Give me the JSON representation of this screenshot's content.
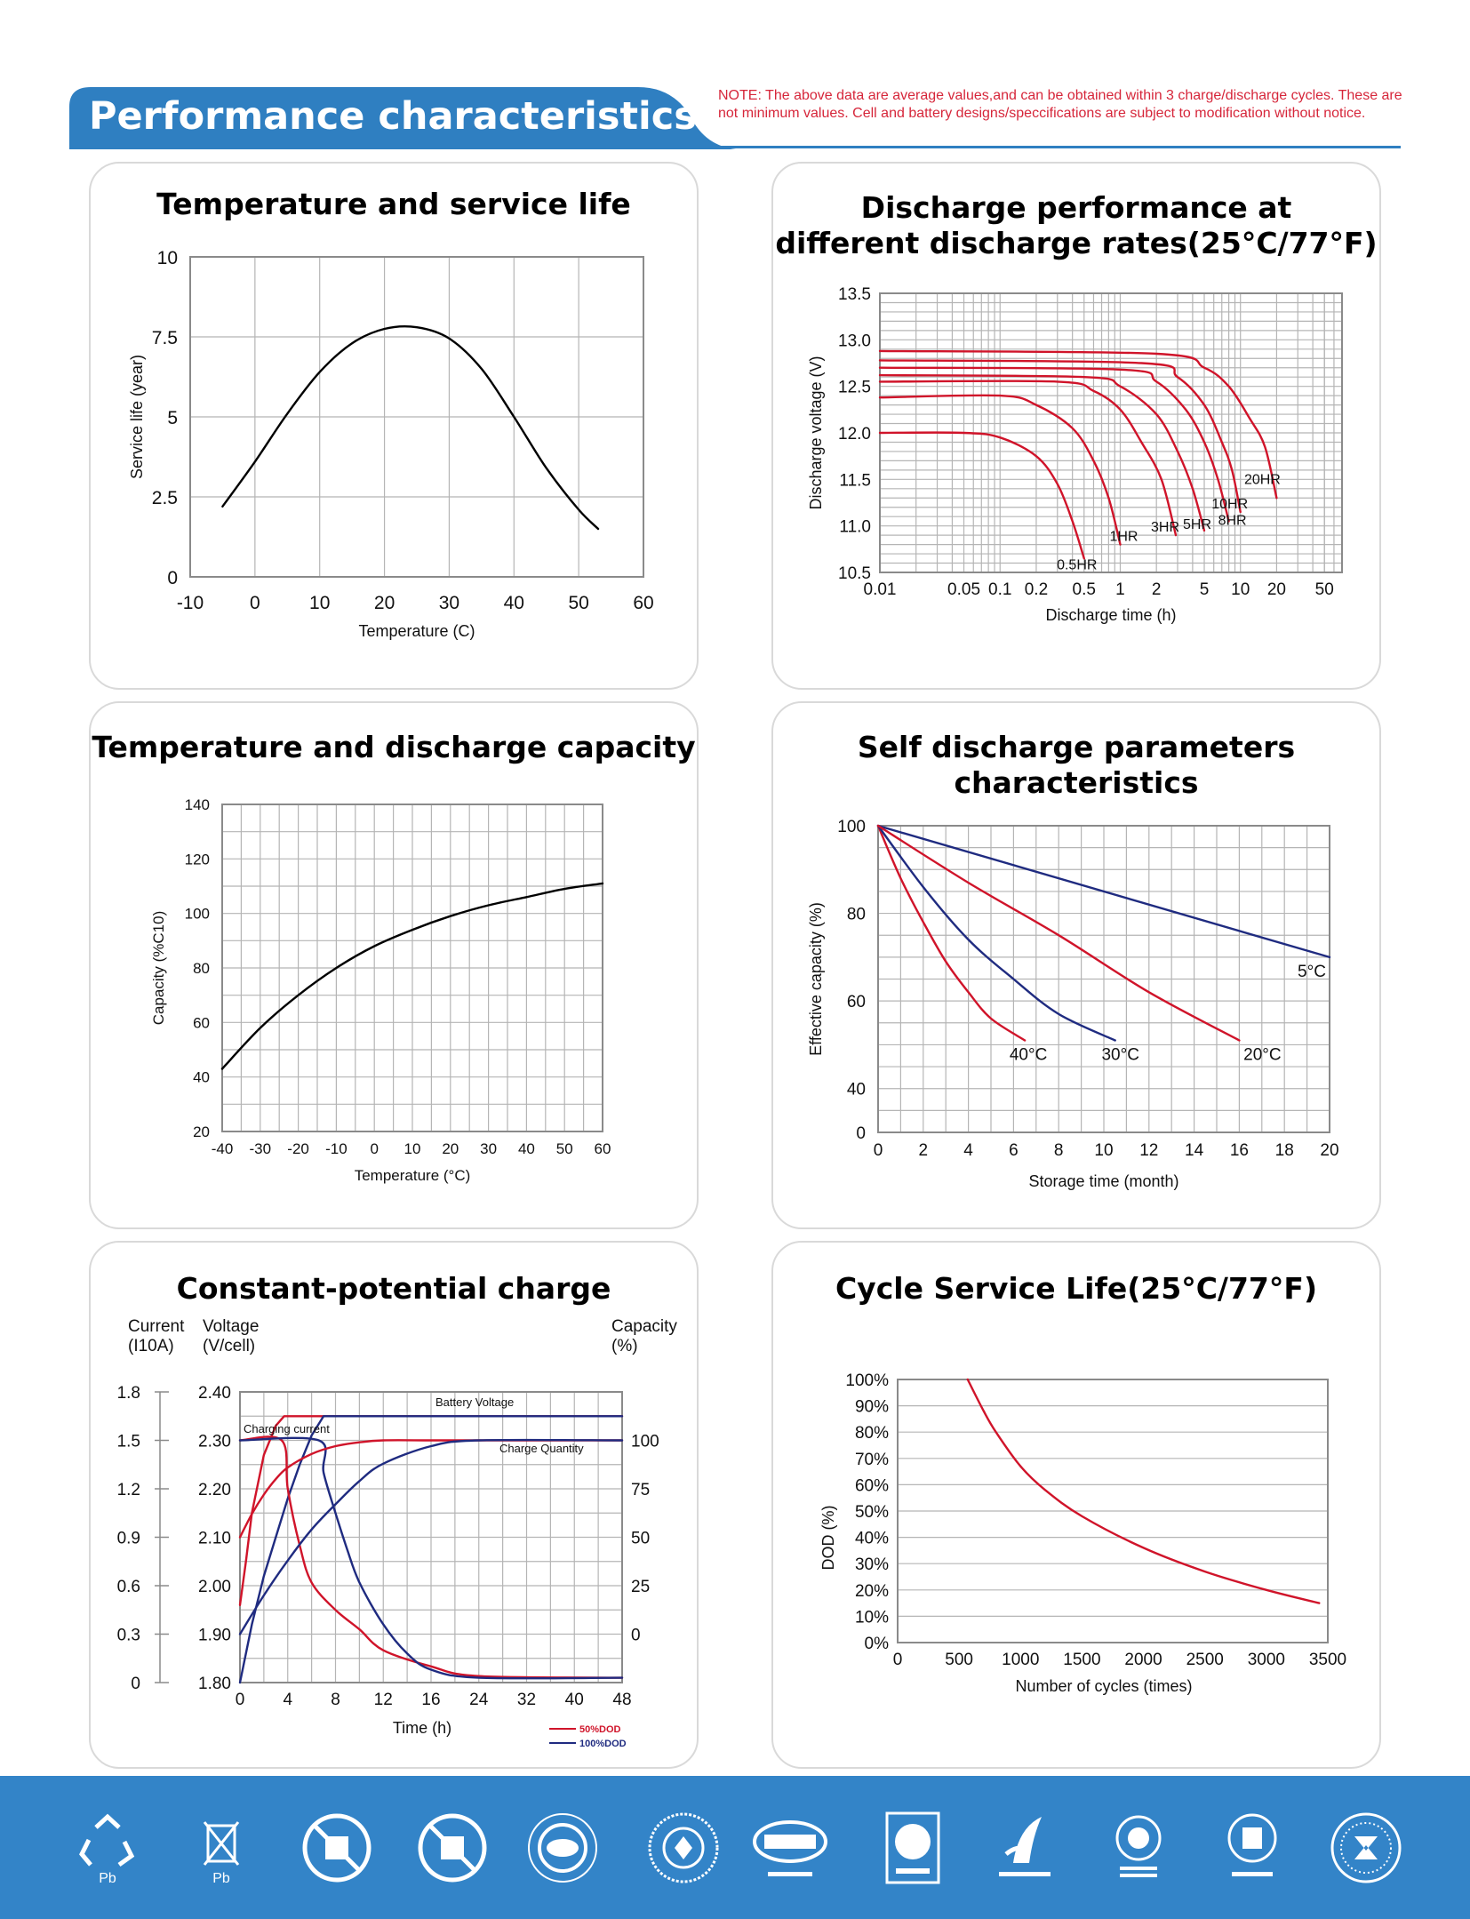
{
  "header": {
    "title": "Performance characteristics",
    "note": "NOTE: The above data are average values,and can be obtained within 3 charge/discharge cycles. These are not minimum values. Cell and battery designs/speccifications are subject to modification without notice."
  },
  "colors": {
    "accent": "#2f7fc1",
    "red": "#d0142a",
    "navy": "#1f2b80",
    "grid": "#b5b5b5",
    "footer": "#3384c8"
  },
  "charts": {
    "c1": {
      "title": "Temperature and service life",
      "xlabel": "Temperature (C)",
      "ylabel": "Service life (year)",
      "xticks": [
        "-10",
        "0",
        "10",
        "20",
        "30",
        "40",
        "50",
        "60"
      ],
      "yticks": [
        "0",
        "2.5",
        "5",
        "7.5",
        "10"
      ]
    },
    "c2": {
      "title": "Discharge performance at\ndifferent discharge rates(25°C/77°F)",
      "xlabel": "Discharge time (h)",
      "ylabel": "Discharge voltage (V)",
      "xticks": [
        "0.01",
        "0.05",
        "0.1",
        "0.2",
        "0.5",
        "1",
        "2",
        "5",
        "10",
        "20",
        "50"
      ],
      "yticks": [
        "10.5",
        "11.0",
        "11.5",
        "12.0",
        "12.5",
        "13.0",
        "13.5"
      ],
      "curve_labels": [
        "0.5HR",
        "1HR",
        "3HR",
        "5HR",
        "8HR",
        "10HR",
        "20HR"
      ]
    },
    "c3": {
      "title": "Temperature and discharge capacity",
      "xlabel": "Temperature (°C)",
      "ylabel": "Capacity (%C10)",
      "xticks": [
        "-40",
        "-30",
        "-20",
        "-10",
        "0",
        "10",
        "20",
        "30",
        "40",
        "50",
        "60"
      ],
      "yticks": [
        "20",
        "40",
        "60",
        "80",
        "100",
        "120",
        "140"
      ]
    },
    "c4": {
      "title": "Self discharge parameters characteristics",
      "xlabel": "Storage time (month)",
      "ylabel": "Effective capacity (%)",
      "xticks": [
        "0",
        "2",
        "4",
        "6",
        "8",
        "10",
        "12",
        "14",
        "16",
        "18",
        "20"
      ],
      "yticks": [
        "0",
        "40",
        "60",
        "80",
        "100"
      ],
      "series_labels": [
        "5°C",
        "40°C",
        "30°C",
        "20°C"
      ]
    },
    "c5": {
      "title": "Constant-potential charge",
      "xlabel": "Time (h)",
      "current_label": "Current\n(I10A)",
      "voltage_label": "Voltage\n(V/cell)",
      "capacity_label": "Capacity\n(%)",
      "current_ticks": [
        "0",
        "0.3",
        "0.6",
        "0.9",
        "1.2",
        "1.5",
        "1.8"
      ],
      "voltage_ticks": [
        "1.80",
        "1.90",
        "2.00",
        "2.10",
        "2.20",
        "2.30",
        "2.40"
      ],
      "capacity_ticks": [
        "0",
        "25",
        "50",
        "75",
        "100"
      ],
      "xticks": [
        "0",
        "4",
        "8",
        "12",
        "16",
        "24",
        "32",
        "40",
        "48"
      ],
      "annotations": [
        "Battery Voltage",
        "Charging current",
        "Charge Quantity"
      ],
      "legend": [
        "50%DOD",
        "100%DOD"
      ]
    },
    "c6": {
      "title": "Cycle Service Life(25°C/77°F)",
      "xlabel": "Number of cycles (times)",
      "ylabel": "DOD (%)",
      "xticks": [
        "0",
        "500",
        "1000",
        "1500",
        "2000",
        "2500",
        "3000",
        "3500"
      ],
      "yticks": [
        "0%",
        "10%",
        "20%",
        "30%",
        "40%",
        "50%",
        "60%",
        "70%",
        "80%",
        "90%",
        "100%"
      ]
    }
  },
  "chart_data": [
    {
      "type": "line",
      "title": "Temperature and service life",
      "xlabel": "Temperature (C)",
      "ylabel": "Service life (year)",
      "xlim": [
        -10,
        60
      ],
      "ylim": [
        0,
        10
      ],
      "series": [
        {
          "x": [
            -5,
            0,
            5,
            10,
            15,
            20,
            25,
            30,
            35,
            40,
            45,
            50,
            53
          ],
          "y": [
            2.2,
            3.6,
            5.1,
            6.4,
            7.3,
            7.75,
            7.8,
            7.45,
            6.5,
            5.0,
            3.4,
            2.1,
            1.5
          ]
        }
      ]
    },
    {
      "type": "line",
      "title": "Discharge performance at different discharge rates(25°C/77°F)",
      "xlabel": "Discharge time (h)",
      "ylabel": "Discharge voltage (V)",
      "xscale": "log",
      "xlim": [
        0.01,
        70
      ],
      "ylim": [
        10.5,
        13.5
      ],
      "series": [
        {
          "name": "0.5HR",
          "x": [
            0.01,
            0.05,
            0.1,
            0.2,
            0.3,
            0.4,
            0.5
          ],
          "y": [
            12.0,
            12.0,
            11.95,
            11.75,
            11.45,
            11.05,
            10.65
          ]
        },
        {
          "name": "1HR",
          "x": [
            0.01,
            0.1,
            0.2,
            0.4,
            0.6,
            0.8,
            1.0
          ],
          "y": [
            12.38,
            12.4,
            12.3,
            12.05,
            11.7,
            11.3,
            10.8
          ]
        },
        {
          "name": "3HR",
          "x": [
            0.01,
            0.3,
            0.6,
            1.0,
            1.5,
            2.2,
            2.9
          ],
          "y": [
            12.55,
            12.55,
            12.45,
            12.25,
            11.9,
            11.5,
            10.9
          ]
        },
        {
          "name": "5HR",
          "x": [
            0.01,
            0.5,
            1.0,
            2.0,
            3.0,
            4.0,
            5.0
          ],
          "y": [
            12.62,
            12.6,
            12.5,
            12.2,
            11.8,
            11.4,
            10.95
          ]
        },
        {
          "name": "8HR",
          "x": [
            0.01,
            1.0,
            2.0,
            3.5,
            5.0,
            6.5,
            8.0
          ],
          "y": [
            12.7,
            12.68,
            12.55,
            12.25,
            11.9,
            11.5,
            11.05
          ]
        },
        {
          "name": "10HR",
          "x": [
            0.01,
            1.5,
            3.0,
            5.0,
            7.0,
            8.5,
            10.0
          ],
          "y": [
            12.78,
            12.75,
            12.6,
            12.3,
            11.9,
            11.6,
            11.15
          ]
        },
        {
          "name": "20HR",
          "x": [
            0.01,
            2.0,
            5.0,
            8.0,
            12.0,
            16.0,
            20.0
          ],
          "y": [
            12.88,
            12.85,
            12.7,
            12.5,
            12.15,
            11.85,
            11.3
          ]
        }
      ]
    },
    {
      "type": "line",
      "title": "Temperature and discharge capacity",
      "xlabel": "Temperature (°C)",
      "ylabel": "Capacity (%C10)",
      "xlim": [
        -40,
        60
      ],
      "ylim": [
        20,
        140
      ],
      "series": [
        {
          "x": [
            -40,
            -30,
            -20,
            -10,
            0,
            10,
            20,
            30,
            40,
            50,
            60
          ],
          "y": [
            43,
            58,
            70,
            80,
            88,
            94,
            99,
            103,
            106,
            109,
            111
          ]
        }
      ]
    },
    {
      "type": "line",
      "title": "Self discharge parameters characteristics",
      "xlabel": "Storage time (month)",
      "ylabel": "Effective capacity (%)",
      "xlim": [
        0,
        20
      ],
      "ylim": [
        30,
        100
      ],
      "series": [
        {
          "name": "5°C",
          "x": [
            0,
            20
          ],
          "y": [
            100,
            70
          ]
        },
        {
          "name": "40°C",
          "x": [
            0,
            1,
            2,
            3,
            4,
            5,
            6.5
          ],
          "y": [
            100,
            88,
            78,
            69,
            62,
            56,
            51
          ]
        },
        {
          "name": "30°C",
          "x": [
            0,
            2,
            4,
            6,
            8,
            10.5
          ],
          "y": [
            100,
            86,
            74,
            65,
            57,
            51
          ]
        },
        {
          "name": "20°C",
          "x": [
            0,
            4,
            8,
            12,
            16
          ],
          "y": [
            100,
            87,
            75,
            62,
            51
          ]
        }
      ]
    },
    {
      "type": "line",
      "title": "Constant-potential charge",
      "xlabel": "Time (h)",
      "x": [
        "0",
        "4",
        "8",
        "12",
        "16",
        "24",
        "32",
        "40",
        "48"
      ],
      "series": [
        {
          "name": "Battery Voltage 50%DOD",
          "x": [
            0,
            0.5,
            1,
            2,
            3,
            3.7,
            48
          ],
          "y_voltage": [
            1.96,
            2.05,
            2.15,
            2.27,
            2.33,
            2.35,
            2.35
          ]
        },
        {
          "name": "Battery Voltage 100%DOD",
          "x": [
            0,
            1,
            2,
            3,
            4,
            5,
            6,
            7,
            48
          ],
          "y_voltage": [
            1.8,
            1.92,
            2.02,
            2.1,
            2.18,
            2.25,
            2.31,
            2.35,
            2.35
          ]
        },
        {
          "name": "Charging current 50%DOD",
          "x": [
            0,
            3.5,
            4,
            5,
            6,
            8,
            10,
            12,
            16,
            24,
            48
          ],
          "y_current": [
            1.5,
            1.5,
            1.2,
            0.85,
            0.62,
            0.45,
            0.33,
            0.2,
            0.1,
            0.04,
            0.03
          ]
        },
        {
          "name": "Charging current 100%DOD",
          "x": [
            0,
            6.6,
            7,
            8,
            9,
            10,
            12,
            14,
            16,
            24,
            48
          ],
          "y_current": [
            1.5,
            1.5,
            1.3,
            1.05,
            0.82,
            0.62,
            0.36,
            0.18,
            0.08,
            0.03,
            0.03
          ]
        },
        {
          "name": "Charge Quantity 50%DOD",
          "x": [
            0,
            1,
            2,
            3,
            4,
            6,
            8,
            10,
            12,
            16,
            24,
            48
          ],
          "y_capacity": [
            50,
            62,
            72,
            80,
            86,
            93,
            97,
            99,
            100,
            100,
            100,
            100
          ]
        },
        {
          "name": "Charge Quantity 100%DOD",
          "x": [
            0,
            2,
            4,
            6,
            8,
            10,
            12,
            16,
            24,
            48
          ],
          "y_capacity": [
            0,
            20,
            38,
            54,
            67,
            79,
            88,
            97,
            100,
            100
          ]
        }
      ]
    },
    {
      "type": "line",
      "title": "Cycle Service Life(25°C/77°F)",
      "xlabel": "Number of cycles (times)",
      "ylabel": "DOD (%)",
      "xlim": [
        0,
        3500
      ],
      "ylim": [
        0,
        100
      ],
      "series": [
        {
          "x": [
            570,
            700,
            800,
            1000,
            1200,
            1500,
            2000,
            2500,
            3000,
            3430
          ],
          "y": [
            100,
            88,
            80,
            67,
            58,
            48,
            36,
            27,
            20,
            15
          ]
        }
      ]
    }
  ]
}
